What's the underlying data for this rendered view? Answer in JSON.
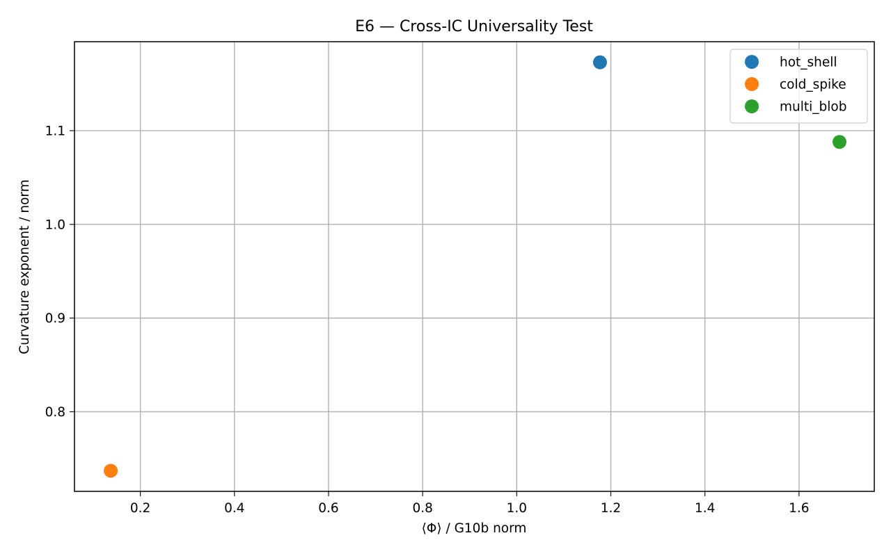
{
  "chart_data": {
    "type": "scatter",
    "title": "E6 — Cross-IC Universality Test",
    "xlabel": "⟨Φ⟩ / G10b norm",
    "ylabel": "Curvature exponent / norm",
    "xlim": [
      0.06,
      1.76
    ],
    "ylim": [
      0.715,
      1.195
    ],
    "xticks": [
      0.2,
      0.4,
      0.6,
      0.8,
      1.0,
      1.2,
      1.4,
      1.6
    ],
    "xtick_labels": [
      "0.2",
      "0.4",
      "0.6",
      "0.8",
      "1.0",
      "1.2",
      "1.4",
      "1.6"
    ],
    "yticks": [
      0.8,
      0.9,
      1.0,
      1.1
    ],
    "ytick_labels": [
      "0.8",
      "0.9",
      "1.0",
      "1.1"
    ],
    "grid": true,
    "legend_position": "top-right",
    "series": [
      {
        "name": "hot_shell",
        "color": "#1f77b4",
        "points": [
          {
            "x": 1.177,
            "y": 1.173
          }
        ]
      },
      {
        "name": "cold_spike",
        "color": "#ff7f0e",
        "points": [
          {
            "x": 0.137,
            "y": 0.737
          }
        ]
      },
      {
        "name": "multi_blob",
        "color": "#2ca02c",
        "points": [
          {
            "x": 1.686,
            "y": 1.088
          }
        ]
      }
    ]
  }
}
